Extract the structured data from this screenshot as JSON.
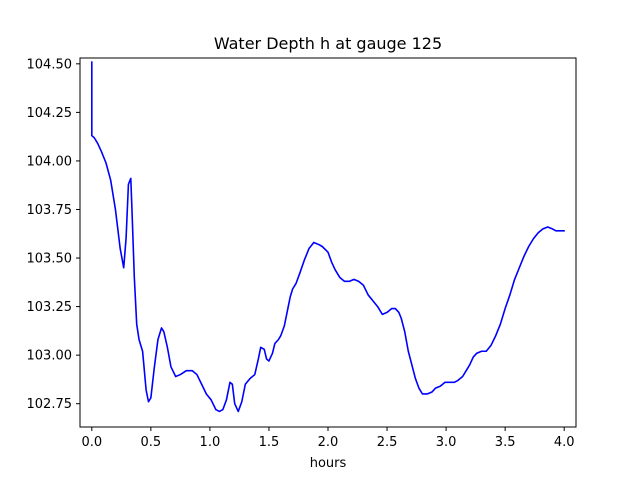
{
  "chart_data": {
    "type": "line",
    "title": "Water Depth h at gauge 125",
    "xlabel": "hours",
    "ylabel": "",
    "xlim": [
      -0.1,
      4.1
    ],
    "ylim": [
      102.63,
      104.53
    ],
    "grid": false,
    "x_ticks": [
      {
        "value": 0.0,
        "label": "0.0"
      },
      {
        "value": 0.5,
        "label": "0.5"
      },
      {
        "value": 1.0,
        "label": "1.0"
      },
      {
        "value": 1.5,
        "label": "1.5"
      },
      {
        "value": 2.0,
        "label": "2.0"
      },
      {
        "value": 2.5,
        "label": "2.5"
      },
      {
        "value": 3.0,
        "label": "3.0"
      },
      {
        "value": 3.5,
        "label": "3.5"
      },
      {
        "value": 4.0,
        "label": "4.0"
      }
    ],
    "y_ticks": [
      {
        "value": 102.75,
        "label": "102.75"
      },
      {
        "value": 103.0,
        "label": "103.00"
      },
      {
        "value": 103.25,
        "label": "103.25"
      },
      {
        "value": 103.5,
        "label": "103.50"
      },
      {
        "value": 103.75,
        "label": "103.75"
      },
      {
        "value": 104.0,
        "label": "104.00"
      },
      {
        "value": 104.25,
        "label": "104.25"
      },
      {
        "value": 104.5,
        "label": "104.50"
      }
    ],
    "series": [
      {
        "color": "#0000ff",
        "x": [
          0.0,
          0.0,
          0.02,
          0.05,
          0.08,
          0.12,
          0.16,
          0.2,
          0.24,
          0.27,
          0.29,
          0.31,
          0.33,
          0.34,
          0.36,
          0.38,
          0.4,
          0.43,
          0.46,
          0.48,
          0.5,
          0.53,
          0.56,
          0.59,
          0.61,
          0.64,
          0.67,
          0.71,
          0.75,
          0.8,
          0.85,
          0.89,
          0.93,
          0.97,
          1.01,
          1.05,
          1.08,
          1.11,
          1.14,
          1.17,
          1.19,
          1.21,
          1.24,
          1.27,
          1.3,
          1.34,
          1.38,
          1.41,
          1.43,
          1.46,
          1.48,
          1.5,
          1.53,
          1.55,
          1.58,
          1.6,
          1.63,
          1.66,
          1.68,
          1.7,
          1.73,
          1.76,
          1.8,
          1.84,
          1.88,
          1.92,
          1.95,
          2.0,
          2.03,
          2.06,
          2.1,
          2.14,
          2.18,
          2.22,
          2.26,
          2.3,
          2.34,
          2.38,
          2.42,
          2.46,
          2.5,
          2.54,
          2.57,
          2.6,
          2.62,
          2.65,
          2.68,
          2.71,
          2.74,
          2.77,
          2.8,
          2.84,
          2.88,
          2.91,
          2.95,
          2.99,
          3.03,
          3.07,
          3.1,
          3.14,
          3.17,
          3.2,
          3.23,
          3.26,
          3.3,
          3.34,
          3.38,
          3.42,
          3.46,
          3.5,
          3.54,
          3.58,
          3.62,
          3.66,
          3.7,
          3.74,
          3.78,
          3.82,
          3.86,
          3.9,
          3.93,
          3.96,
          3.98,
          4.0
        ],
        "y": [
          104.51,
          104.13,
          104.12,
          104.09,
          104.05,
          103.99,
          103.9,
          103.75,
          103.55,
          103.45,
          103.6,
          103.88,
          103.91,
          103.75,
          103.4,
          103.16,
          103.08,
          103.02,
          102.82,
          102.76,
          102.78,
          102.94,
          103.08,
          103.14,
          103.12,
          103.04,
          102.94,
          102.89,
          102.9,
          102.92,
          102.92,
          102.9,
          102.85,
          102.8,
          102.77,
          102.72,
          102.71,
          102.72,
          102.77,
          102.86,
          102.85,
          102.75,
          102.71,
          102.76,
          102.85,
          102.88,
          102.9,
          102.98,
          103.04,
          103.03,
          102.98,
          102.97,
          103.01,
          103.06,
          103.08,
          103.1,
          103.15,
          103.24,
          103.3,
          103.34,
          103.37,
          103.42,
          103.49,
          103.55,
          103.58,
          103.57,
          103.56,
          103.53,
          103.48,
          103.44,
          103.4,
          103.38,
          103.38,
          103.39,
          103.38,
          103.36,
          103.31,
          103.28,
          103.25,
          103.21,
          103.22,
          103.24,
          103.24,
          103.22,
          103.19,
          103.12,
          103.02,
          102.95,
          102.88,
          102.83,
          102.8,
          102.8,
          102.81,
          102.83,
          102.84,
          102.86,
          102.86,
          102.86,
          102.87,
          102.89,
          102.92,
          102.95,
          102.99,
          103.01,
          103.02,
          103.02,
          103.05,
          103.1,
          103.16,
          103.24,
          103.31,
          103.39,
          103.45,
          103.51,
          103.56,
          103.6,
          103.63,
          103.65,
          103.66,
          103.65,
          103.64,
          103.64,
          103.64,
          103.64
        ]
      }
    ]
  }
}
